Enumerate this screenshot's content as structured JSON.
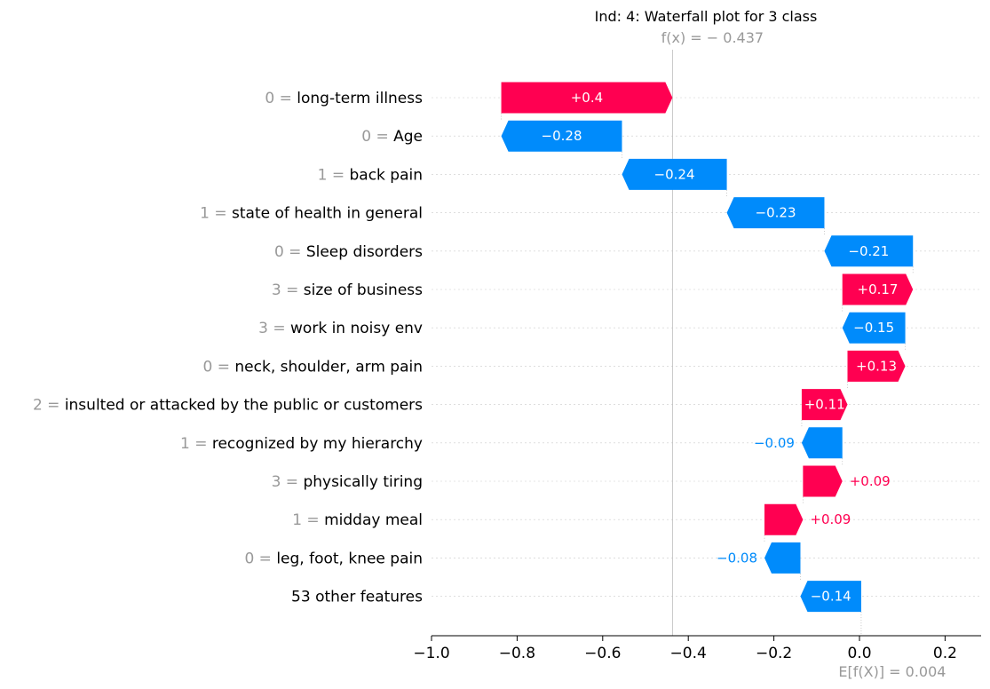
{
  "chart_data": {
    "type": "waterfall",
    "title": "Ind: 4: Waterfall plot for 3 class",
    "fx_label": "f(x) = − 0.437",
    "fx_value": -0.437,
    "base_label": "E[f(X)] = 0.004",
    "base_value": 0.004,
    "xlim": [
      -1.0,
      0.29
    ],
    "xticks": [
      {
        "value": -1.0,
        "label": "−1.0"
      },
      {
        "value": -0.8,
        "label": "−0.8"
      },
      {
        "value": -0.6,
        "label": "−0.6"
      },
      {
        "value": -0.4,
        "label": "−0.4"
      },
      {
        "value": -0.2,
        "label": "−0.2"
      },
      {
        "value": 0.0,
        "label": "0.0"
      },
      {
        "value": 0.2,
        "label": "0.2"
      }
    ],
    "colors": {
      "positive": "#ff0051",
      "negative": "#008bfb"
    },
    "features": [
      {
        "value_label": "0 =",
        "name": "long-term illness",
        "contribution": 0.4,
        "text": "+0.4",
        "start": -0.437,
        "end": -0.837
      },
      {
        "value_label": "0 =",
        "name": "Age",
        "contribution": -0.28,
        "text": "−0.28",
        "start": -0.837,
        "end": -0.555
      },
      {
        "value_label": "1 =",
        "name": "back pain",
        "contribution": -0.24,
        "text": "−0.24",
        "start": -0.555,
        "end": -0.31
      },
      {
        "value_label": "1 =",
        "name": "state of health in general",
        "contribution": -0.23,
        "text": "−0.23",
        "start": -0.31,
        "end": -0.082
      },
      {
        "value_label": "0 =",
        "name": "Sleep disorders",
        "contribution": -0.21,
        "text": "−0.21",
        "start": -0.082,
        "end": 0.125
      },
      {
        "value_label": "3 =",
        "name": "size of business",
        "contribution": 0.17,
        "text": "+0.17",
        "start": 0.125,
        "end": -0.04
      },
      {
        "value_label": "3 =",
        "name": "work in noisy env",
        "contribution": -0.15,
        "text": "−0.15",
        "start": -0.04,
        "end": 0.107
      },
      {
        "value_label": "0 =",
        "name": "neck, shoulder, arm pain",
        "contribution": 0.13,
        "text": "+0.13",
        "start": 0.107,
        "end": -0.028
      },
      {
        "value_label": "2 =",
        "name": "insulted or attacked by the public or customers",
        "contribution": 0.11,
        "text": "+0.11",
        "start": -0.028,
        "end": -0.135
      },
      {
        "value_label": "1 =",
        "name": "recognized by my hierarchy",
        "contribution": -0.09,
        "text": "−0.09",
        "start": -0.135,
        "end": -0.04
      },
      {
        "value_label": "3 =",
        "name": "physically tiring",
        "contribution": 0.09,
        "text": "+0.09",
        "start": -0.04,
        "end": -0.132
      },
      {
        "value_label": "1 =",
        "name": "midday meal",
        "contribution": 0.09,
        "text": "+0.09",
        "start": -0.132,
        "end": -0.222
      },
      {
        "value_label": "0 =",
        "name": "leg, foot, knee pain",
        "contribution": -0.08,
        "text": "−0.08",
        "start": -0.222,
        "end": -0.138
      },
      {
        "value_label": "",
        "name": "53 other features",
        "contribution": -0.14,
        "text": "−0.14",
        "start": -0.138,
        "end": 0.004
      }
    ]
  }
}
